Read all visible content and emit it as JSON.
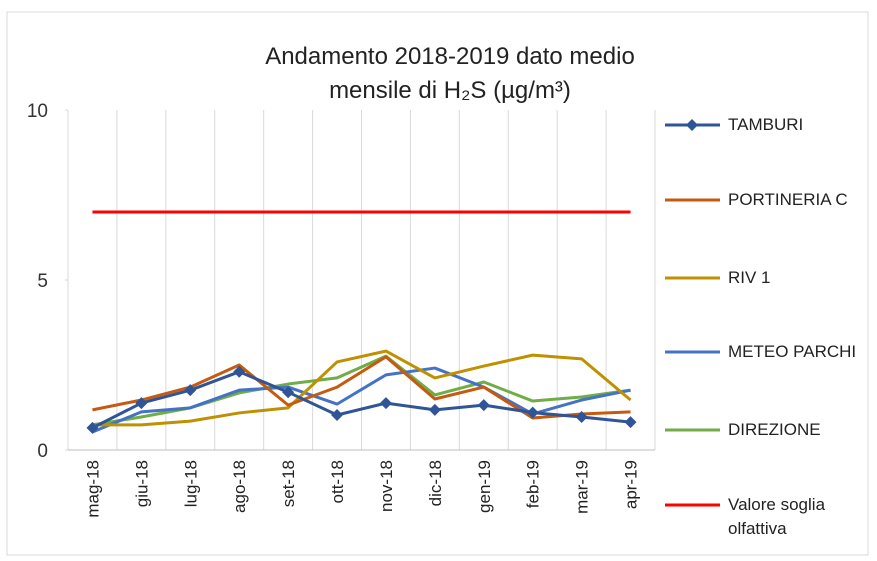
{
  "chart_data": {
    "type": "line",
    "title": "Andamento 2018-2019 dato medio mensile di H₂S (µg/m³)",
    "categories": [
      "mag-18",
      "giu-18",
      "lug-18",
      "ago-18",
      "set-18",
      "ott-18",
      "nov-18",
      "dic-18",
      "gen-19",
      "feb-19",
      "mar-19",
      "apr-19"
    ],
    "series": [
      {
        "name": "TAMBURI",
        "color": "#2f5597",
        "marker": "diamond",
        "values": [
          0.65,
          1.38,
          1.76,
          2.3,
          1.7,
          1.03,
          1.38,
          1.18,
          1.32,
          1.1,
          0.97,
          0.82
        ]
      },
      {
        "name": "PORTINERIA C",
        "color": "#c55a11",
        "values": [
          1.18,
          1.47,
          1.85,
          2.5,
          1.32,
          1.85,
          2.74,
          1.5,
          1.85,
          0.94,
          1.06,
          1.12
        ]
      },
      {
        "name": "RIV 1",
        "color": "#bf9000",
        "values": [
          0.74,
          0.74,
          0.85,
          1.09,
          1.24,
          2.59,
          2.91,
          2.12,
          2.47,
          2.79,
          2.68,
          1.47
        ]
      },
      {
        "name": "METEO PARCHI",
        "color": "#4472c4",
        "values": [
          0.53,
          1.12,
          1.24,
          1.76,
          1.85,
          1.35,
          2.21,
          2.41,
          1.85,
          1.06,
          1.47,
          1.76
        ]
      },
      {
        "name": "DIREZIONE",
        "color": "#70ad47",
        "values": [
          0.74,
          0.97,
          1.24,
          1.68,
          1.94,
          2.12,
          2.76,
          1.62,
          2.0,
          1.44,
          1.56,
          1.76
        ]
      },
      {
        "name": "Valore soglia olfattiva",
        "color": "#ff0000",
        "values": [
          7,
          7,
          7,
          7,
          7,
          7,
          7,
          7,
          7,
          7,
          7,
          7
        ]
      }
    ],
    "ylim": [
      0,
      10
    ],
    "yticks": [
      0,
      5,
      10
    ],
    "vertical_grid": true,
    "legend": "right"
  }
}
